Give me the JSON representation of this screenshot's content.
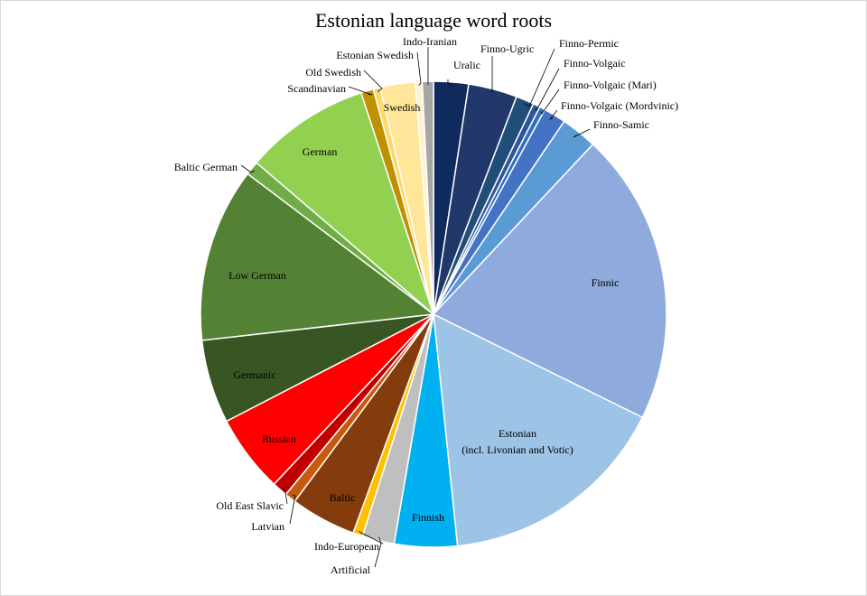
{
  "chart_data": {
    "type": "pie",
    "title": "Estonian language word roots",
    "legend": "none",
    "slices": [
      {
        "label": "Uralic",
        "value": 2.5,
        "color": "#0f2a5c"
      },
      {
        "label": "Finno-Ugric",
        "value": 3.5,
        "color": "#22386a"
      },
      {
        "label": "Finno-Permic",
        "value": 1.3,
        "color": "#1f4e79"
      },
      {
        "label": "Finno-Volgaic",
        "value": 0.5,
        "color": "#2f5597"
      },
      {
        "label": "Finno-Volgaic  (Mari)",
        "value": 0.4,
        "color": "#2e6fbf"
      },
      {
        "label": "Finno-Volgaic  (Mordvinic)",
        "value": 1.6,
        "color": "#4472c4"
      },
      {
        "label": "Finno-Samic",
        "value": 2.6,
        "color": "#5b9bd5"
      },
      {
        "label": "Finnic",
        "value": 21.0,
        "color": "#8faadc"
      },
      {
        "label": "Estonian\n(incl. Livonian and Votic)",
        "value": 16.6,
        "color": "#9dc3e6"
      },
      {
        "label": "Finnish",
        "value": 4.5,
        "color": "#00b0f0"
      },
      {
        "label": "Artificial",
        "value": 2.3,
        "color": "#bfbfbf"
      },
      {
        "label": "Indo-European",
        "value": 0.7,
        "color": "#ffc000"
      },
      {
        "label": "Baltic",
        "value": 4.7,
        "color": "#843c0c"
      },
      {
        "label": "Latvian",
        "value": 0.8,
        "color": "#c55a11"
      },
      {
        "label": "Old East Slavic",
        "value": 1.1,
        "color": "#c00000"
      },
      {
        "label": "Russian",
        "value": 5.6,
        "color": "#ff0000"
      },
      {
        "label": "Germanic",
        "value": 6.0,
        "color": "#375623"
      },
      {
        "label": "Low German",
        "value": 12.5,
        "color": "#548235"
      },
      {
        "label": "Baltic German",
        "value": 1.0,
        "color": "#70ad47"
      },
      {
        "label": "German",
        "value": 9.0,
        "color": "#92d050"
      },
      {
        "label": "Scandinavian",
        "value": 0.9,
        "color": "#bf9000"
      },
      {
        "label": "Old Swedish",
        "value": 0.5,
        "color": "#ffd966"
      },
      {
        "label": "Swedish",
        "value": 2.5,
        "color": "#ffe699"
      },
      {
        "label": "Estonian Swedish",
        "value": 0.5,
        "color": "#fff2cc"
      },
      {
        "label": "Indo-Iranian",
        "value": 0.8,
        "color": "#a6a6a6"
      }
    ]
  }
}
